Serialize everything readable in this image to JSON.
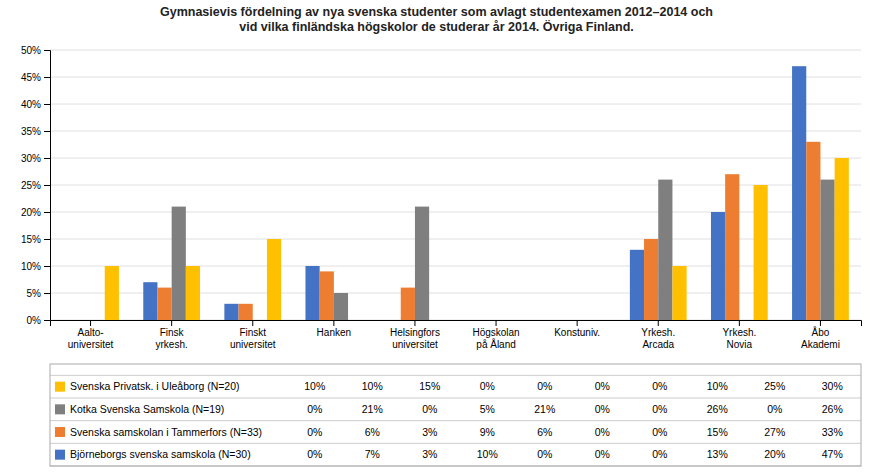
{
  "chart_data": {
    "type": "bar",
    "title": "Gymnasievis fördelning av nya svenska studenter som avlagt studentexamen 2012–2014 och\nvid vilka finländska högskolor de studerar år 2014. Övriga Finland.",
    "categories": [
      "Aalto-\nuniversitet",
      "Finsk\nyrkesh.",
      "Finskt\nuniversitet",
      "Hanken",
      "Helsingfors\nuniversitet",
      "Högskolan\npå Åland",
      "Konstuniv.",
      "Yrkesh.\nArcada",
      "Yrkesh.\nNovia",
      "Åbo\nAkademi"
    ],
    "series": [
      {
        "name": "Björneborgs svenska samskola (N=30)",
        "color": "#4472C4",
        "values": [
          0,
          7,
          3,
          10,
          0,
          0,
          0,
          13,
          20,
          47
        ],
        "value_labels": [
          "0%",
          "7%",
          "3%",
          "10%",
          "0%",
          "0%",
          "0%",
          "13%",
          "20%",
          "47%"
        ]
      },
      {
        "name": "Svenska samskolan i Tammerfors (N=33)",
        "color": "#ED7D31",
        "values": [
          0,
          6,
          3,
          9,
          6,
          0,
          0,
          15,
          27,
          33
        ],
        "value_labels": [
          "0%",
          "6%",
          "3%",
          "9%",
          "6%",
          "0%",
          "0%",
          "15%",
          "27%",
          "33%"
        ]
      },
      {
        "name": "Kotka Svenska Samskola (N=19)",
        "color": "#7F7F7F",
        "values": [
          0,
          21,
          0,
          5,
          21,
          0,
          0,
          26,
          0,
          26
        ],
        "value_labels": [
          "0%",
          "21%",
          "0%",
          "5%",
          "21%",
          "0%",
          "0%",
          "26%",
          "0%",
          "26%"
        ]
      },
      {
        "name": "Svenska Privatsk. i Uleåborg (N=20)",
        "color": "#FFC000",
        "values": [
          10,
          10,
          15,
          0,
          0,
          0,
          0,
          10,
          25,
          30
        ],
        "value_labels": [
          "10%",
          "10%",
          "15%",
          "0%",
          "0%",
          "0%",
          "0%",
          "10%",
          "25%",
          "30%"
        ]
      }
    ],
    "ylim": [
      0,
      50
    ],
    "yticks": [
      {
        "value": 0,
        "label": "0%"
      },
      {
        "value": 5,
        "label": "5%"
      },
      {
        "value": 10,
        "label": "10%"
      },
      {
        "value": 15,
        "label": "15%"
      },
      {
        "value": 20,
        "label": "20%"
      },
      {
        "value": 25,
        "label": "25%"
      },
      {
        "value": 30,
        "label": "30%"
      },
      {
        "value": 35,
        "label": "35%"
      },
      {
        "value": 40,
        "label": "40%"
      },
      {
        "value": 45,
        "label": "45%"
      },
      {
        "value": 50,
        "label": "50%"
      }
    ],
    "grid": true,
    "legend": "bottom"
  }
}
